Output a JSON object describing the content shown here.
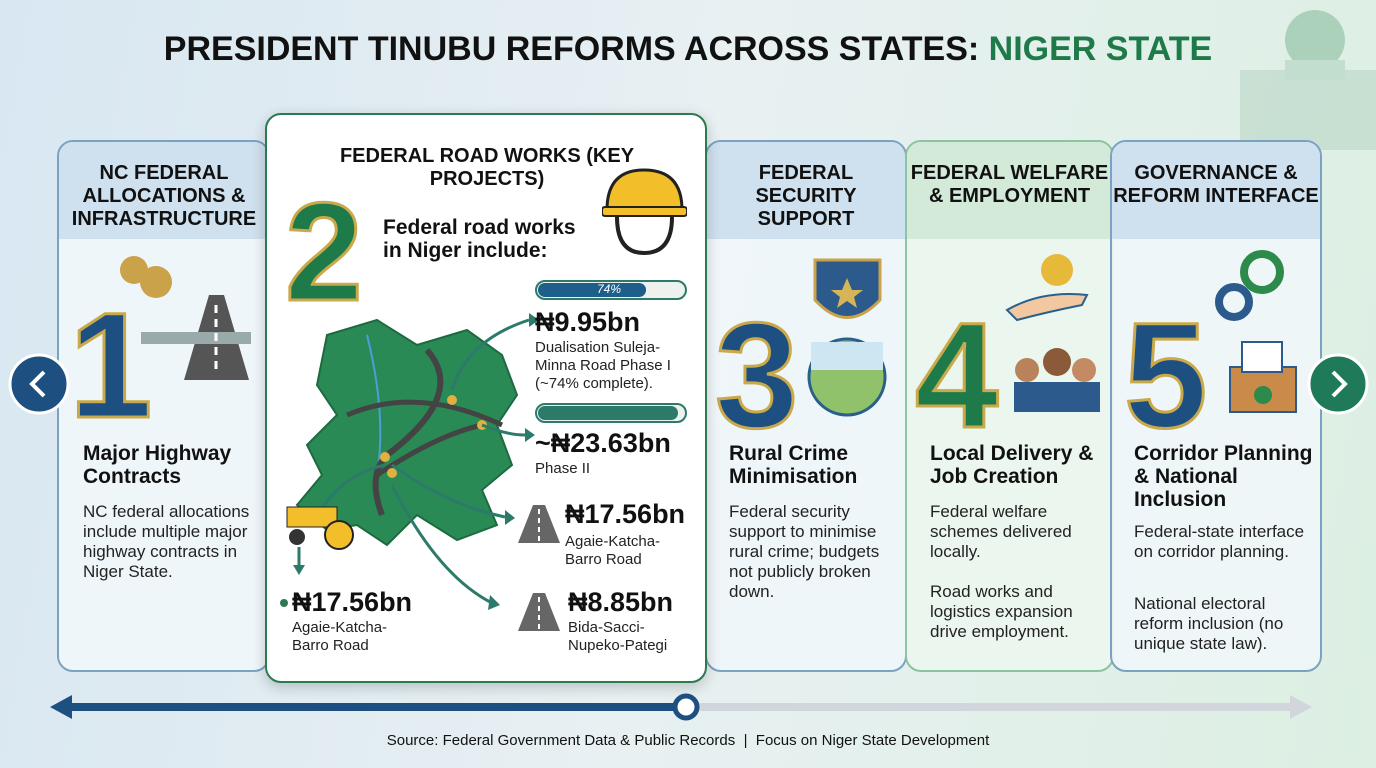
{
  "header": {
    "title": "PRESIDENT TINUBU REFORMS ACROSS STATES: ",
    "highlight": "NIGER STATE"
  },
  "cards": [
    {
      "heading": "NC FEDERAL ALLOCATIONS & INFRASTRUCTURE",
      "number": "1",
      "subtitle": "Major Highway Contracts",
      "body": [
        "NC federal allocations include multiple major highway contracts in Niger State."
      ]
    },
    {
      "heading": "FEDERAL ROAD WORKS (KEY PROJECTS)",
      "number": "2",
      "intro": "Federal road works in Niger include:",
      "projects": [
        {
          "amount": "₦9.95bn",
          "description": "Dualisation Suleja-Minna Road Phase I (~74% complete).",
          "progress": {
            "value": 74,
            "label": "74%"
          }
        },
        {
          "amount": "~₦23.63bn",
          "description": "Phase II"
        },
        {
          "amount": "₦17.56bn",
          "description": "Agaie-Katcha-Barro Road"
        },
        {
          "amount": "₦8.85bn",
          "description": "Bida-Sacci-Nupeko-Pategi"
        },
        {
          "amount": "₦17.56bn",
          "description": "Agaie-Katcha-Barro Road"
        }
      ]
    },
    {
      "heading": "FEDERAL SECURITY SUPPORT",
      "number": "3",
      "subtitle": "Rural Crime Minimisation",
      "body": [
        "Federal security support to minimise rural crime; budgets not publicly broken down."
      ]
    },
    {
      "heading": "FEDERAL WELFARE & EMPLOYMENT",
      "number": "4",
      "subtitle": "Local Delivery & Job Creation",
      "body": [
        "Federal welfare schemes delivered locally.",
        "Road works and logistics expansion drive employment."
      ]
    },
    {
      "heading": "GOVERNANCE & REFORM INTERFACE",
      "number": "5",
      "subtitle": "Corridor Planning & National Inclusion",
      "body": [
        "Federal-state interface on corridor planning.",
        "National electoral reform inclusion (no unique state law)."
      ]
    }
  ],
  "footer": {
    "source": "Source: Federal Government Data & Public Records  |  Focus on Niger State Development"
  }
}
